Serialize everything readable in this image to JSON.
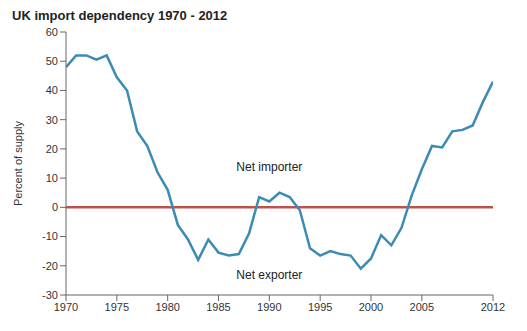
{
  "chart_data": {
    "type": "line",
    "title": "UK import dependency 1970 - 2012",
    "y_label": "Percent of supply",
    "x": [
      1970,
      1971,
      1972,
      1973,
      1974,
      1975,
      1976,
      1977,
      1978,
      1979,
      1980,
      1981,
      1982,
      1983,
      1984,
      1985,
      1986,
      1987,
      1988,
      1989,
      1990,
      1991,
      1992,
      1993,
      1994,
      1995,
      1996,
      1997,
      1998,
      1999,
      2000,
      2001,
      2002,
      2003,
      2004,
      2005,
      2006,
      2007,
      2008,
      2009,
      2010,
      2011,
      2012
    ],
    "values": [
      48,
      52,
      52,
      50.5,
      52,
      44.5,
      40,
      26,
      21,
      12,
      6,
      -6,
      -11,
      -18,
      -11,
      -15.5,
      -16.5,
      -16,
      -9,
      3.5,
      2,
      5,
      3.5,
      -1,
      -14,
      -16.5,
      -15,
      -16,
      -16.5,
      -21,
      -17.5,
      -9.5,
      -13,
      -7,
      4,
      13,
      21,
      20.5,
      26,
      26.5,
      28,
      36,
      43
    ],
    "color": "#3b8bb5",
    "xlim": [
      1970,
      2012
    ],
    "xticks": [
      1970,
      1975,
      1980,
      1985,
      1990,
      1995,
      2000,
      2005,
      2012
    ],
    "ylim": [
      -30,
      60
    ],
    "yticks": [
      -30,
      -20,
      -10,
      0,
      10,
      20,
      30,
      40,
      50,
      60
    ],
    "grid": false,
    "reference_line": {
      "y": 0,
      "color": "#c0504d"
    },
    "annotations": [
      {
        "text": "Net importer",
        "x": 1990,
        "y": 14
      },
      {
        "text": "Net exporter",
        "x": 1990,
        "y": -23
      }
    ]
  }
}
